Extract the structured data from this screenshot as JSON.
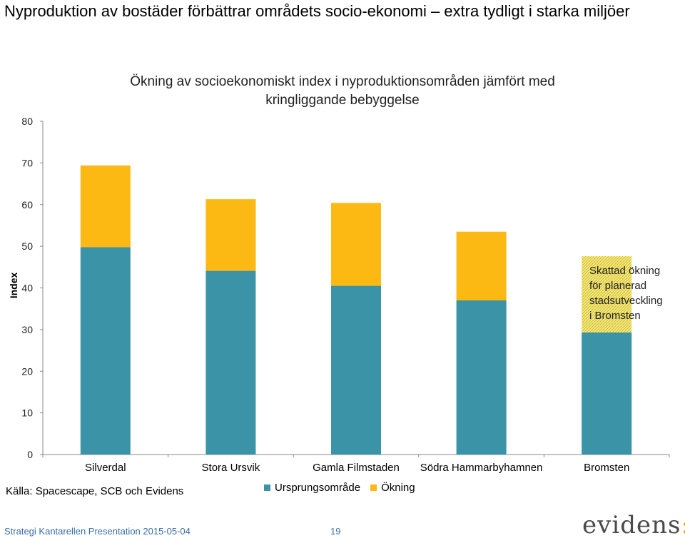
{
  "slide": {
    "title": "Nyproduktion av bostäder förbättrar områdets socio-ekonomi – extra tydligt i starka miljöer",
    "source": "Källa: Spacescape, SCB och Evidens",
    "footer": "Strategi  Kantarellen  Presentation 2015-05-04",
    "page_number": "19",
    "logo_text": "evidens",
    "logo_mark": ":"
  },
  "colors": {
    "base": "#3a93a6",
    "increase": "#fdb913",
    "estimated_hatch": "#e8d94a"
  },
  "chart_data": {
    "type": "bar",
    "stacked": true,
    "title": "Ökning av socioekonomiskt index i nyproduktionsområden jämfört med kringliggande bebyggelse",
    "xlabel": "",
    "ylabel": "Index",
    "ylim": [
      0,
      80
    ],
    "yticks": [
      0,
      10,
      20,
      30,
      40,
      50,
      60,
      70,
      80
    ],
    "categories": [
      "Silverdal",
      "Stora Ursvik",
      "Gamla Filmstaden",
      "Södra Hammarbyhamnen",
      "Bromsten"
    ],
    "series": [
      {
        "name": "Ursprungsområde",
        "values": [
          49.8,
          44.1,
          40.5,
          37.0,
          29.3
        ]
      },
      {
        "name": "Ökning",
        "values": [
          19.6,
          17.2,
          19.9,
          16.5,
          18.3
        ]
      }
    ],
    "estimated_categories": [
      "Bromsten"
    ],
    "annotation": "Skattad ökning för planerad stadsutveckling i Bromsten",
    "annotation_lines": [
      "Skattad ökning",
      "för planerad",
      "stadsutveckling",
      "i Bromsten"
    ],
    "legend_position": "bottom",
    "grid": false
  }
}
